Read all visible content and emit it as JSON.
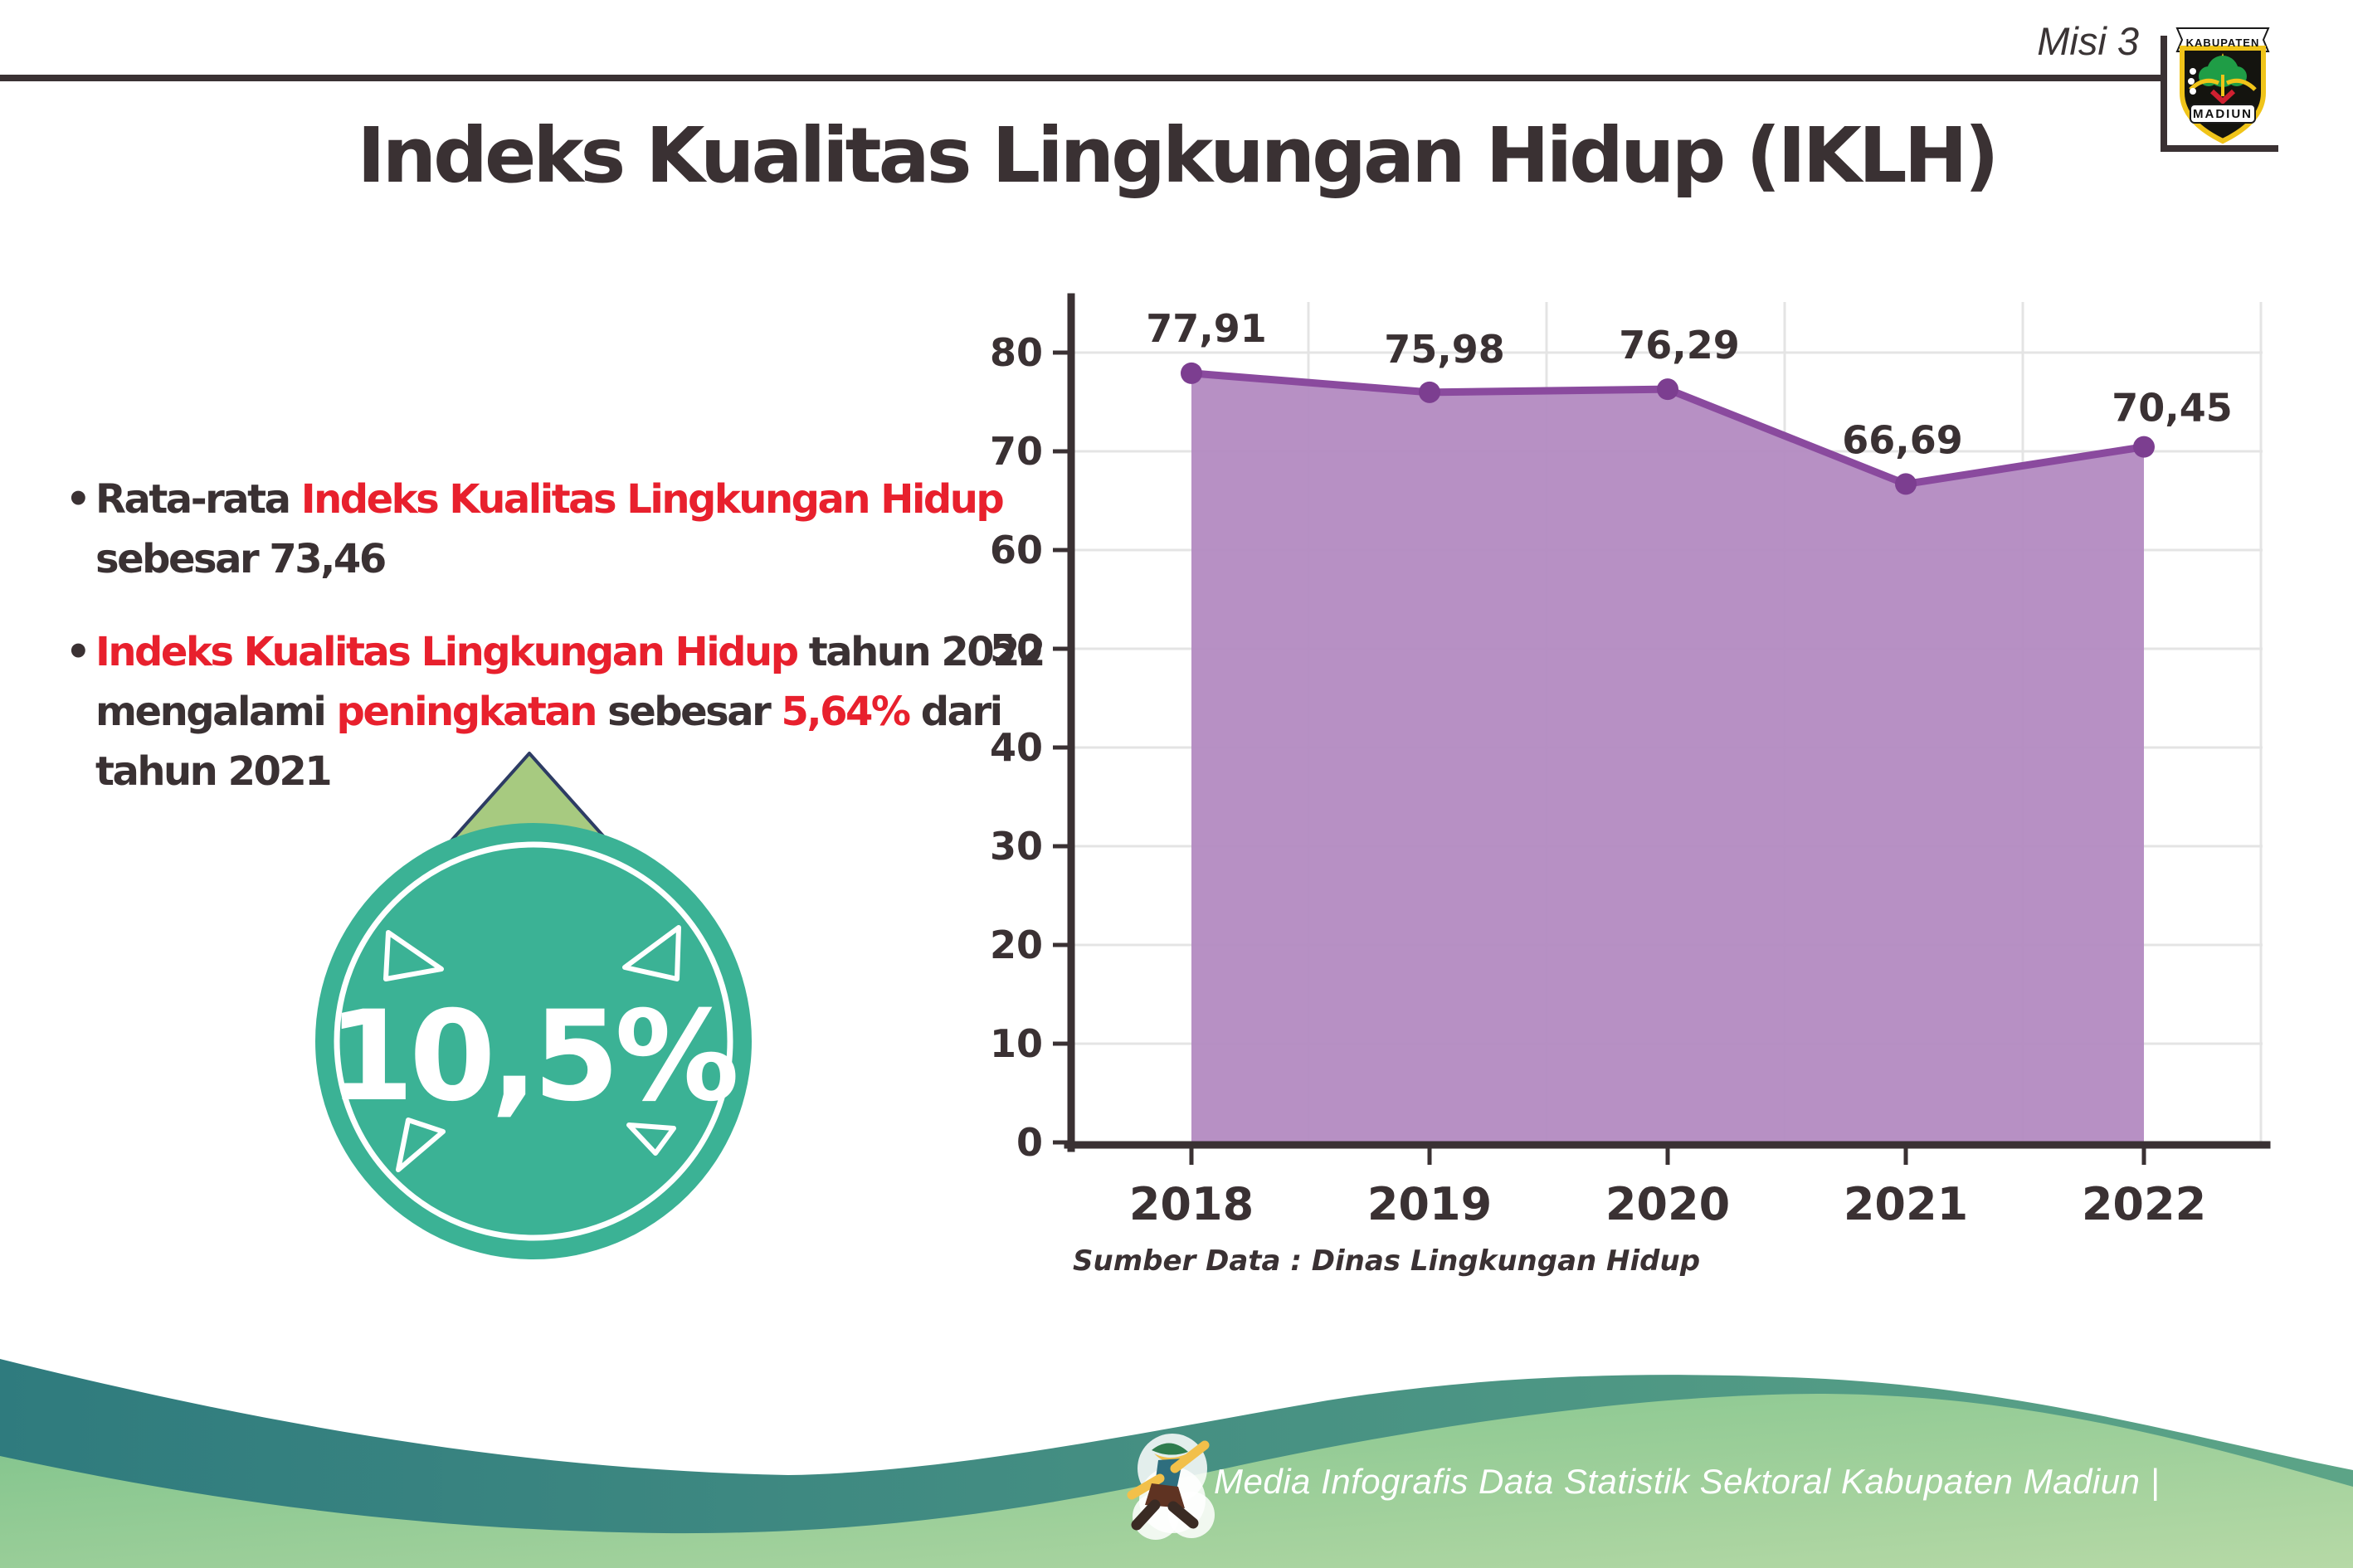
{
  "header": {
    "mission": "Misi 3"
  },
  "logo": {
    "top": "KABUPATEN",
    "bottom": "MADIUN"
  },
  "title": "Indeks Kualitas Lingkungan Hidup (IKLH)",
  "bullets": [
    {
      "lines": [
        [
          {
            "t": "Rata-rata ",
            "c": "ink"
          },
          {
            "t": "Indeks Kualitas Lingkungan Hidup",
            "c": "red"
          }
        ],
        [
          {
            "t": "sebesar 73,46",
            "c": "ink"
          }
        ]
      ]
    },
    {
      "lines": [
        [
          {
            "t": "Indeks Kualitas Lingkungan Hidup",
            "c": "red"
          },
          {
            "t": " tahun 2022",
            "c": "ink"
          }
        ],
        [
          {
            "t": "mengalami ",
            "c": "ink"
          },
          {
            "t": "peningkatan",
            "c": "red"
          },
          {
            "t": " sebesar ",
            "c": "ink"
          },
          {
            "t": "5,64%",
            "c": "red"
          },
          {
            "t": " dari",
            "c": "ink"
          }
        ],
        [
          {
            "t": "tahun 2021",
            "c": "ink"
          }
        ]
      ]
    }
  ],
  "badge": {
    "value": "10,5%"
  },
  "chart_data": {
    "type": "area",
    "categories": [
      "2018",
      "2019",
      "2020",
      "2021",
      "2022"
    ],
    "values": [
      77.91,
      75.98,
      76.29,
      66.69,
      70.45
    ],
    "value_labels": [
      "77,91",
      "75,98",
      "76,29",
      "66,69",
      "70,45"
    ],
    "ylim": [
      0,
      80
    ],
    "ytick_step": 10,
    "grid": true,
    "legend": "none",
    "source": "Sumber Data : Dinas Lingkungan Hidup"
  },
  "footer": {
    "text": "Media Infografis Data Statistik Sektoral Kabupaten Madiun |"
  },
  "colors": {
    "ink": "#3a3133",
    "red": "#e8202d",
    "chart_fill": "#b38ac1",
    "chart_line": "#8a4a9e",
    "chart_dot": "#7c3e90",
    "badge_teal": "#3bb295",
    "arrow_green": "#a7ca80",
    "arrow_outline": "#2d3c64",
    "footer_teal": "#2f7b7e",
    "footer_green": "#7cc28a"
  }
}
